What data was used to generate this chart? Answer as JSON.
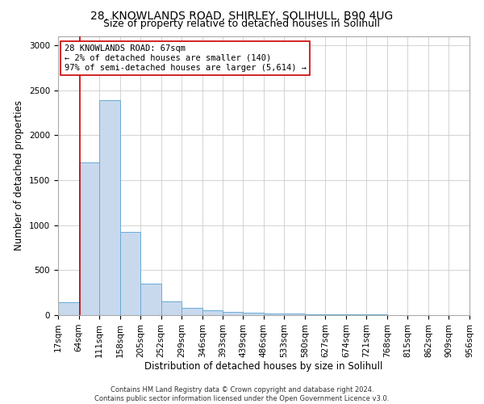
{
  "title_line1": "28, KNOWLANDS ROAD, SHIRLEY, SOLIHULL, B90 4UG",
  "title_line2": "Size of property relative to detached houses in Solihull",
  "xlabel": "Distribution of detached houses by size in Solihull",
  "ylabel": "Number of detached properties",
  "footnote": "Contains HM Land Registry data © Crown copyright and database right 2024.\nContains public sector information licensed under the Open Government Licence v3.0.",
  "bin_edges": [
    17,
    64,
    111,
    158,
    205,
    252,
    299,
    346,
    393,
    439,
    486,
    533,
    580,
    627,
    674,
    721,
    768,
    815,
    862,
    909,
    956
  ],
  "bar_heights": [
    140,
    1700,
    2390,
    930,
    350,
    155,
    80,
    55,
    40,
    30,
    20,
    15,
    10,
    8,
    6,
    5,
    4,
    3,
    2,
    2
  ],
  "bar_color": "#c8d9ee",
  "bar_edge_color": "#6aaad4",
  "property_size": 67,
  "vline_color": "#cc0000",
  "annotation_text": "28 KNOWLANDS ROAD: 67sqm\n← 2% of detached houses are smaller (140)\n97% of semi-detached houses are larger (5,614) →",
  "annotation_box_color": "#ffffff",
  "annotation_box_edge_color": "#cc0000",
  "ylim": [
    0,
    3100
  ],
  "yticks": [
    0,
    500,
    1000,
    1500,
    2000,
    2500,
    3000
  ],
  "bg_color": "#ffffff",
  "grid_color": "#cccccc",
  "title_fontsize": 10,
  "subtitle_fontsize": 9,
  "axis_label_fontsize": 8.5,
  "tick_fontsize": 7.5,
  "annotation_fontsize": 7.5,
  "footnote_fontsize": 6
}
